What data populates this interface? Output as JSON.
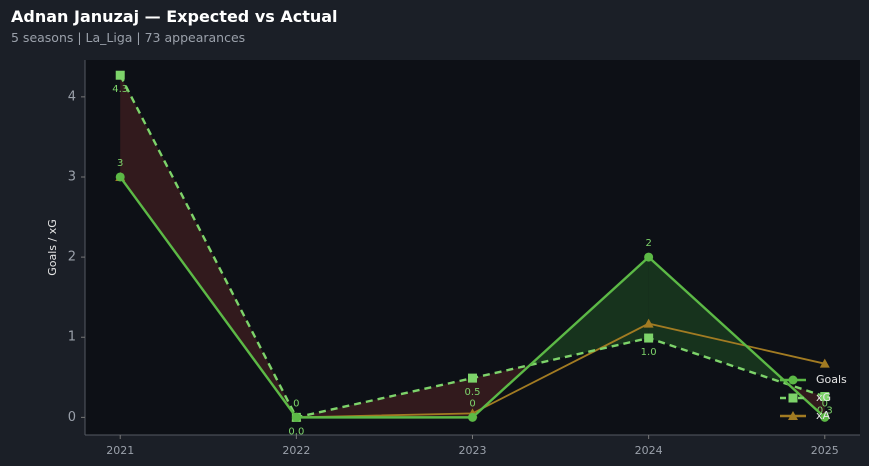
{
  "chart_data": {
    "type": "line",
    "title": "Adnan Januzaj — Expected vs Actual",
    "subtitle": "5 seasons | La_Liga | 73 appearances",
    "y_label": "Goals / xG",
    "x": [
      2021,
      2022,
      2023,
      2024,
      2025
    ],
    "xlim": [
      2020.8,
      2025.2
    ],
    "xticks": [
      2021,
      2022,
      2023,
      2024,
      2025
    ],
    "ylim": [
      -0.22,
      4.46
    ],
    "yticks": [
      0,
      1,
      2,
      3,
      4
    ],
    "legend": "lower right",
    "series": [
      {
        "name": "Goals",
        "color": "#5cb946",
        "values": [
          3,
          0,
          0,
          2,
          0
        ]
      },
      {
        "name": "xG",
        "color": "#7dd36a",
        "dashed": true,
        "values": [
          4.27,
          0,
          0.49,
          0.99,
          0.26
        ],
        "value_labels": [
          "4.3",
          "0.0",
          "0.5",
          "1.0",
          "0.3"
        ]
      },
      {
        "name": "xA",
        "color": "#a27b22",
        "values": [
          3.0,
          0,
          0.05,
          1.17,
          0.67
        ]
      }
    ]
  }
}
